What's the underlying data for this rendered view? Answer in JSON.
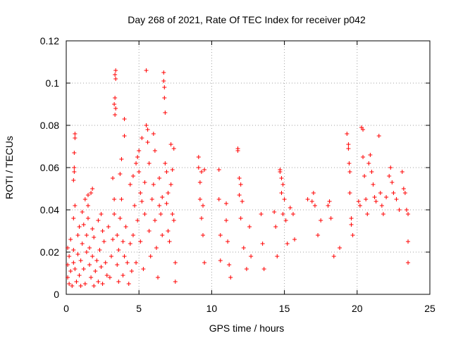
{
  "chart_data": {
    "type": "scatter",
    "title": "Day 268 of 2021, Rate Of TEC Index for receiver p042",
    "xlabel": "GPS time / hours",
    "ylabel": "ROTI / TECUs",
    "xlim": [
      0,
      25
    ],
    "ylim": [
      0,
      0.12
    ],
    "x_ticks": [
      0,
      5,
      10,
      15,
      20,
      25
    ],
    "x_tick_labels": [
      "0",
      "5",
      "10",
      "15",
      "20",
      "25"
    ],
    "y_ticks": [
      0,
      0.02,
      0.04,
      0.06,
      0.08,
      0.1,
      0.12
    ],
    "y_tick_labels": [
      "0",
      "0.02",
      "0.04",
      "0.06",
      "0.08",
      "0.1",
      "0.12"
    ],
    "grid": true,
    "marker": "+",
    "marker_color": "#ff0000",
    "series": [
      {
        "name": "ROTI",
        "points": [
          [
            0.1,
            0.022
          ],
          [
            0.1,
            0.008
          ],
          [
            0.1,
            0.014
          ],
          [
            0.2,
            0.005
          ],
          [
            0.2,
            0.018
          ],
          [
            0.3,
            0.026
          ],
          [
            0.3,
            0.011
          ],
          [
            0.4,
            0.004
          ],
          [
            0.5,
            0.015
          ],
          [
            0.5,
            0.021
          ],
          [
            0.5,
            0.036
          ],
          [
            0.5,
            0.054
          ],
          [
            0.55,
            0.058
          ],
          [
            0.55,
            0.06
          ],
          [
            0.55,
            0.067
          ],
          [
            0.6,
            0.074
          ],
          [
            0.6,
            0.076
          ],
          [
            0.6,
            0.042
          ],
          [
            0.6,
            0.012
          ],
          [
            0.7,
            0.006
          ],
          [
            0.8,
            0.019
          ],
          [
            0.8,
            0.028
          ],
          [
            0.9,
            0.009
          ],
          [
            0.9,
            0.032
          ],
          [
            1.0,
            0.004
          ],
          [
            1.0,
            0.016
          ],
          [
            1.1,
            0.024
          ],
          [
            1.1,
            0.039
          ],
          [
            1.2,
            0.012
          ],
          [
            1.2,
            0.033
          ],
          [
            1.3,
            0.045
          ],
          [
            1.3,
            0.005
          ],
          [
            1.4,
            0.02
          ],
          [
            1.4,
            0.028
          ],
          [
            1.5,
            0.042
          ],
          [
            1.5,
            0.047
          ],
          [
            1.5,
            0.036
          ],
          [
            1.6,
            0.014
          ],
          [
            1.6,
            0.022
          ],
          [
            1.7,
            0.008
          ],
          [
            1.7,
            0.048
          ],
          [
            1.8,
            0.05
          ],
          [
            1.8,
            0.031
          ],
          [
            1.8,
            0.018
          ],
          [
            1.9,
            0.004
          ],
          [
            1.9,
            0.027
          ],
          [
            2.0,
            0.011
          ],
          [
            2.1,
            0.016
          ],
          [
            2.2,
            0.035
          ],
          [
            2.2,
            0.006
          ],
          [
            2.3,
            0.021
          ],
          [
            2.4,
            0.038
          ],
          [
            2.4,
            0.013
          ],
          [
            2.5,
            0.03
          ],
          [
            2.5,
            0.005
          ],
          [
            2.6,
            0.025
          ],
          [
            2.7,
            0.015
          ],
          [
            2.8,
            0.009
          ],
          [
            2.9,
            0.032
          ],
          [
            3.0,
            0.008
          ],
          [
            3.1,
            0.018
          ],
          [
            3.2,
            0.026
          ],
          [
            3.2,
            0.055
          ],
          [
            3.3,
            0.038
          ],
          [
            3.3,
            0.045
          ],
          [
            3.3,
            0.09
          ],
          [
            3.35,
            0.093
          ],
          [
            3.35,
            0.085
          ],
          [
            3.35,
            0.104
          ],
          [
            3.4,
            0.106
          ],
          [
            3.4,
            0.102
          ],
          [
            3.4,
            0.088
          ],
          [
            3.5,
            0.028
          ],
          [
            3.5,
            0.014
          ],
          [
            3.6,
            0.006
          ],
          [
            3.6,
            0.021
          ],
          [
            3.7,
            0.036
          ],
          [
            3.7,
            0.057
          ],
          [
            3.8,
            0.064
          ],
          [
            3.8,
            0.045
          ],
          [
            3.9,
            0.025
          ],
          [
            3.9,
            0.009
          ],
          [
            4.0,
            0.083
          ],
          [
            4.0,
            0.075
          ],
          [
            4.0,
            0.018
          ],
          [
            4.1,
            0.032
          ],
          [
            4.2,
            0.015
          ],
          [
            4.3,
            0.005
          ],
          [
            4.4,
            0.052
          ],
          [
            4.4,
            0.024
          ],
          [
            4.5,
            0.011
          ],
          [
            4.6,
            0.056
          ],
          [
            4.6,
            0.028
          ],
          [
            4.7,
            0.042
          ],
          [
            4.8,
            0.015
          ],
          [
            4.8,
            0.062
          ],
          [
            4.9,
            0.065
          ],
          [
            4.9,
            0.035
          ],
          [
            5.0,
            0.068
          ],
          [
            5.0,
            0.058
          ],
          [
            5.1,
            0.048
          ],
          [
            5.1,
            0.025
          ],
          [
            5.2,
            0.074
          ],
          [
            5.2,
            0.044
          ],
          [
            5.3,
            0.012
          ],
          [
            5.4,
            0.053
          ],
          [
            5.4,
            0.038
          ],
          [
            5.5,
            0.106
          ],
          [
            5.5,
            0.08
          ],
          [
            5.6,
            0.078
          ],
          [
            5.6,
            0.072
          ],
          [
            5.7,
            0.062
          ],
          [
            5.7,
            0.03
          ],
          [
            5.8,
            0.018
          ],
          [
            5.9,
            0.045
          ],
          [
            6.0,
            0.052
          ],
          [
            6.0,
            0.076
          ],
          [
            6.1,
            0.068
          ],
          [
            6.1,
            0.035
          ],
          [
            6.2,
            0.022
          ],
          [
            6.3,
            0.008
          ],
          [
            6.4,
            0.055
          ],
          [
            6.4,
            0.042
          ],
          [
            6.5,
            0.038
          ],
          [
            6.6,
            0.046
          ],
          [
            6.6,
            0.028
          ],
          [
            6.7,
            0.105
          ],
          [
            6.7,
            0.101
          ],
          [
            6.75,
            0.098
          ],
          [
            6.75,
            0.093
          ],
          [
            6.8,
            0.086
          ],
          [
            6.8,
            0.062
          ],
          [
            6.9,
            0.058
          ],
          [
            6.9,
            0.043
          ],
          [
            7.0,
            0.03
          ],
          [
            7.0,
            0.048
          ],
          [
            7.1,
            0.025
          ],
          [
            7.2,
            0.071
          ],
          [
            7.2,
            0.052
          ],
          [
            7.3,
            0.059
          ],
          [
            7.3,
            0.038
          ],
          [
            7.4,
            0.069
          ],
          [
            7.4,
            0.035
          ],
          [
            7.5,
            0.015
          ],
          [
            7.5,
            0.006
          ],
          [
            9.1,
            0.065
          ],
          [
            9.1,
            0.06
          ],
          [
            9.2,
            0.053
          ],
          [
            9.2,
            0.045
          ],
          [
            9.3,
            0.058
          ],
          [
            9.3,
            0.036
          ],
          [
            9.4,
            0.042
          ],
          [
            9.4,
            0.028
          ],
          [
            9.5,
            0.059
          ],
          [
            9.5,
            0.015
          ],
          [
            10.5,
            0.059
          ],
          [
            10.5,
            0.045
          ],
          [
            10.6,
            0.028
          ],
          [
            10.6,
            0.016
          ],
          [
            11.0,
            0.043
          ],
          [
            11.0,
            0.035
          ],
          [
            11.1,
            0.025
          ],
          [
            11.2,
            0.014
          ],
          [
            11.3,
            0.008
          ],
          [
            11.8,
            0.069
          ],
          [
            11.8,
            0.068
          ],
          [
            11.9,
            0.055
          ],
          [
            11.9,
            0.047
          ],
          [
            12.0,
            0.052
          ],
          [
            12.0,
            0.036
          ],
          [
            12.1,
            0.044
          ],
          [
            12.2,
            0.022
          ],
          [
            12.4,
            0.012
          ],
          [
            12.6,
            0.032
          ],
          [
            12.7,
            0.018
          ],
          [
            13.4,
            0.038
          ],
          [
            13.5,
            0.024
          ],
          [
            13.6,
            0.012
          ],
          [
            14.3,
            0.039
          ],
          [
            14.4,
            0.032
          ],
          [
            14.5,
            0.018
          ],
          [
            14.7,
            0.059
          ],
          [
            14.7,
            0.058
          ],
          [
            14.8,
            0.055
          ],
          [
            14.8,
            0.048
          ],
          [
            14.9,
            0.052
          ],
          [
            14.9,
            0.038
          ],
          [
            15.0,
            0.045
          ],
          [
            15.1,
            0.035
          ],
          [
            15.2,
            0.024
          ],
          [
            15.4,
            0.041
          ],
          [
            15.6,
            0.038
          ],
          [
            15.7,
            0.026
          ],
          [
            16.6,
            0.045
          ],
          [
            16.9,
            0.044
          ],
          [
            17.0,
            0.048
          ],
          [
            17.1,
            0.042
          ],
          [
            17.3,
            0.028
          ],
          [
            17.5,
            0.035
          ],
          [
            18.0,
            0.042
          ],
          [
            18.1,
            0.044
          ],
          [
            18.2,
            0.036
          ],
          [
            18.4,
            0.018
          ],
          [
            18.8,
            0.022
          ],
          [
            19.3,
            0.076
          ],
          [
            19.4,
            0.071
          ],
          [
            19.4,
            0.069
          ],
          [
            19.45,
            0.062
          ],
          [
            19.5,
            0.058
          ],
          [
            19.5,
            0.048
          ],
          [
            19.6,
            0.036
          ],
          [
            19.6,
            0.033
          ],
          [
            19.7,
            0.028
          ],
          [
            20.1,
            0.044
          ],
          [
            20.2,
            0.042
          ],
          [
            20.3,
            0.079
          ],
          [
            20.4,
            0.078
          ],
          [
            20.4,
            0.065
          ],
          [
            20.5,
            0.056
          ],
          [
            20.6,
            0.045
          ],
          [
            20.7,
            0.038
          ],
          [
            20.8,
            0.062
          ],
          [
            20.9,
            0.066
          ],
          [
            21.0,
            0.058
          ],
          [
            21.1,
            0.052
          ],
          [
            21.2,
            0.046
          ],
          [
            21.3,
            0.044
          ],
          [
            21.5,
            0.075
          ],
          [
            21.6,
            0.048
          ],
          [
            21.7,
            0.042
          ],
          [
            21.8,
            0.038
          ],
          [
            22.0,
            0.046
          ],
          [
            22.2,
            0.056
          ],
          [
            22.3,
            0.06
          ],
          [
            22.4,
            0.053
          ],
          [
            22.5,
            0.048
          ],
          [
            22.7,
            0.045
          ],
          [
            22.9,
            0.04
          ],
          [
            23.1,
            0.058
          ],
          [
            23.2,
            0.05
          ],
          [
            23.3,
            0.048
          ],
          [
            23.4,
            0.04
          ],
          [
            23.5,
            0.038
          ],
          [
            23.5,
            0.025
          ],
          [
            23.5,
            0.015
          ]
        ]
      }
    ]
  }
}
